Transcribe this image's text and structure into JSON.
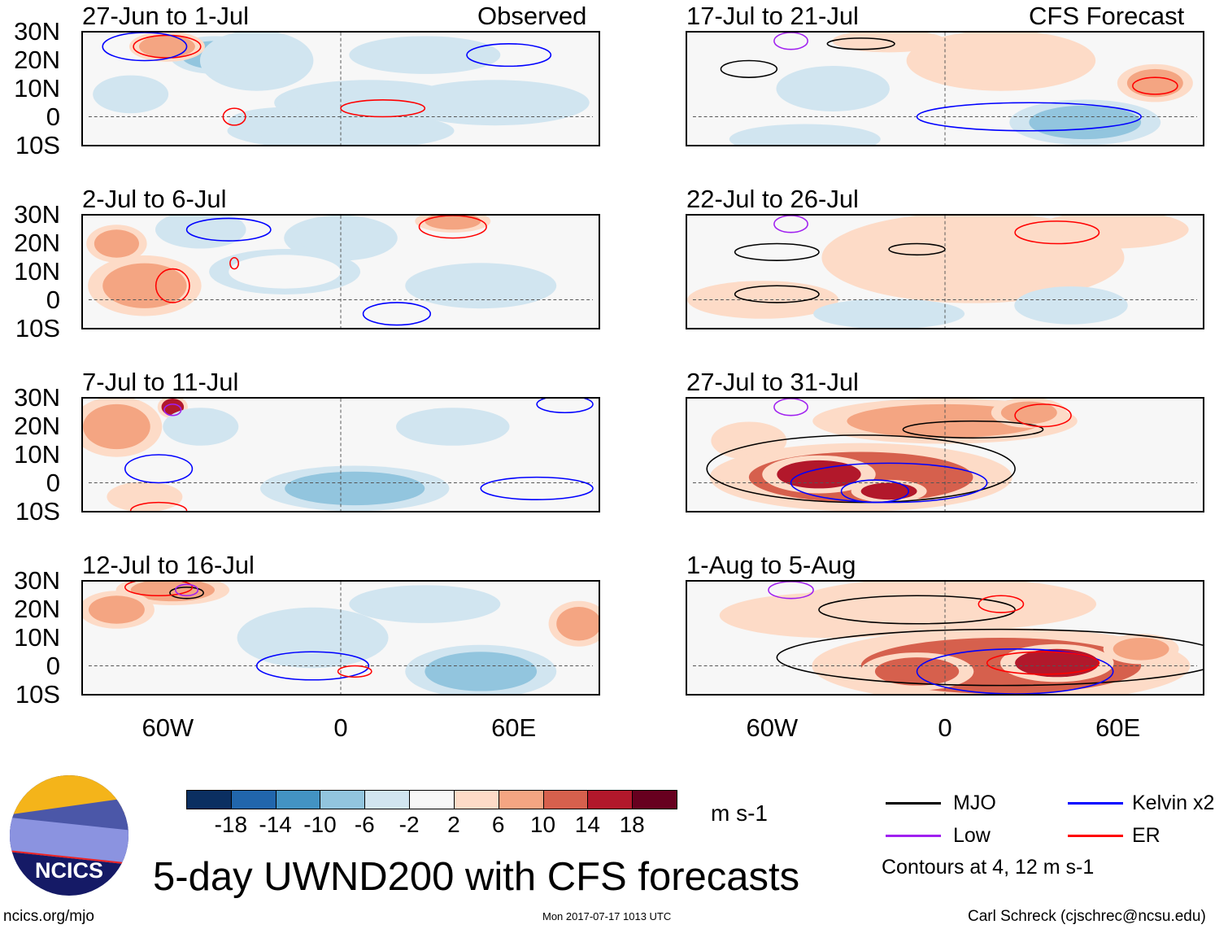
{
  "title": "5-day UWND200 with CFS forecasts",
  "logo_text": "NCICS",
  "footer": {
    "url": "ncics.org/mjo",
    "timestamp": "Mon 2017-07-17 1013 UTC",
    "author": "Carl Schreck (cjschrec@ncsu.edu)"
  },
  "labels": {
    "observed": "Observed",
    "forecast": "CFS Forecast"
  },
  "lat_labels": [
    "30N",
    "20N",
    "10N",
    "0",
    "10S"
  ],
  "lon_labels": [
    "60W",
    "0",
    "60E"
  ],
  "colorbar": {
    "units": "m s-1",
    "ticks": [
      "-18",
      "-14",
      "-10",
      "-6",
      "-2",
      "2",
      "6",
      "10",
      "14",
      "18"
    ],
    "colors": [
      "#0b2f61",
      "#2166ac",
      "#4393c3",
      "#92c5de",
      "#d1e5f0",
      "#f7f7f7",
      "#fddbc7",
      "#f4a582",
      "#d6604d",
      "#b2182b",
      "#67001f"
    ]
  },
  "legend": {
    "items": [
      {
        "label": "MJO",
        "color": "#000000"
      },
      {
        "label": "Kelvin x2",
        "color": "#0000ff"
      },
      {
        "label": "Low",
        "color": "#a020f0"
      },
      {
        "label": "ER",
        "color": "#ff0000"
      }
    ],
    "note": "Contours at 4, 12 m s-1"
  },
  "chart_data": {
    "type": "map",
    "variable": "200-hPa zonal wind anomaly",
    "lon_range": [
      -90,
      90
    ],
    "lat_range": [
      -10,
      30
    ],
    "panels": [
      {
        "title": "27-Jun to 1-Jul",
        "group": "observed",
        "features": [
          [
            -45,
            22,
            12,
            5,
            -8
          ],
          [
            -30,
            20,
            15,
            8,
            -4
          ],
          [
            -62,
            25,
            10,
            4,
            9
          ],
          [
            10,
            5,
            25,
            6,
            -4
          ],
          [
            55,
            5,
            25,
            6,
            -6
          ],
          [
            0,
            -5,
            30,
            5,
            -5
          ],
          [
            -20,
            -2,
            15,
            4,
            -3
          ],
          [
            -75,
            8,
            10,
            5,
            -3
          ],
          [
            30,
            22,
            20,
            5,
            -3
          ]
        ],
        "contours": [
          [
            "er",
            -62,
            25,
            12,
            4
          ],
          [
            "er",
            15,
            3,
            15,
            3
          ],
          [
            "kelvin",
            -70,
            25,
            15,
            5
          ],
          [
            "kelvin",
            60,
            22,
            15,
            4
          ],
          [
            "er",
            -38,
            0,
            4,
            3
          ]
        ]
      },
      {
        "title": "2-Jul to 6-Jul",
        "group": "observed",
        "features": [
          [
            -70,
            5,
            15,
            8,
            6
          ],
          [
            -80,
            20,
            8,
            5,
            6
          ],
          [
            -50,
            25,
            12,
            5,
            -4
          ],
          [
            50,
            5,
            20,
            6,
            -6
          ],
          [
            0,
            22,
            15,
            6,
            -3
          ],
          [
            40,
            28,
            10,
            3,
            6
          ],
          [
            -20,
            10,
            20,
            6,
            -2
          ]
        ],
        "contours": [
          [
            "er",
            -60,
            5,
            6,
            6
          ],
          [
            "er",
            40,
            26,
            12,
            4
          ],
          [
            "kelvin",
            -40,
            25,
            15,
            4
          ],
          [
            "er",
            -38,
            13,
            1.5,
            2
          ],
          [
            "kelvin",
            20,
            -5,
            12,
            4
          ]
        ]
      },
      {
        "title": "7-Jul to 11-Jul",
        "group": "observed",
        "features": [
          [
            -60,
            27,
            4,
            3,
            14
          ],
          [
            -80,
            20,
            12,
            8,
            6
          ],
          [
            5,
            -2,
            25,
            6,
            -7
          ],
          [
            -50,
            20,
            10,
            5,
            -3
          ],
          [
            40,
            20,
            15,
            5,
            -3
          ],
          [
            -70,
            -5,
            10,
            4,
            5
          ]
        ],
        "contours": [
          [
            "low",
            -60,
            26,
            3,
            2
          ],
          [
            "kelvin",
            -65,
            5,
            12,
            5
          ],
          [
            "kelvin",
            70,
            -2,
            20,
            4
          ],
          [
            "er",
            -65,
            -10,
            10,
            3
          ],
          [
            "kelvin",
            80,
            28,
            10,
            3
          ]
        ]
      },
      {
        "title": "12-Jul to 16-Jul",
        "group": "observed",
        "features": [
          [
            -60,
            27,
            15,
            4,
            8
          ],
          [
            50,
            -2,
            20,
            7,
            -10
          ],
          [
            -10,
            10,
            20,
            8,
            -3
          ],
          [
            -80,
            20,
            10,
            5,
            6
          ],
          [
            30,
            22,
            20,
            5,
            -3
          ],
          [
            85,
            15,
            8,
            6,
            6
          ]
        ],
        "contours": [
          [
            "mjo",
            -55,
            26,
            6,
            2
          ],
          [
            "kelvin",
            -10,
            0,
            20,
            5
          ],
          [
            "er",
            5,
            -2,
            6,
            2
          ],
          [
            "er",
            -65,
            28,
            12,
            3
          ],
          [
            "low",
            -55,
            27,
            4,
            2
          ]
        ]
      },
      {
        "title": "17-Jul to 21-Jul",
        "group": "forecast",
        "features": [
          [
            20,
            20,
            25,
            8,
            4
          ],
          [
            50,
            -2,
            20,
            6,
            -8
          ],
          [
            -50,
            -8,
            20,
            4,
            -6
          ],
          [
            -40,
            10,
            15,
            6,
            -3
          ],
          [
            75,
            12,
            10,
            5,
            6
          ],
          [
            -20,
            27,
            15,
            3,
            4
          ]
        ],
        "contours": [
          [
            "mjo",
            -70,
            17,
            10,
            3
          ],
          [
            "mjo",
            -30,
            26,
            12,
            2
          ],
          [
            "low",
            -55,
            27,
            6,
            3
          ],
          [
            "er",
            75,
            11,
            8,
            3
          ],
          [
            "kelvin",
            30,
            0,
            40,
            5
          ]
        ]
      },
      {
        "title": "22-Jul to 26-Jul",
        "group": "forecast",
        "features": [
          [
            10,
            15,
            40,
            12,
            4
          ],
          [
            -65,
            0,
            20,
            5,
            5
          ],
          [
            45,
            -2,
            15,
            5,
            -6
          ],
          [
            -20,
            -5,
            20,
            4,
            -3
          ],
          [
            60,
            25,
            20,
            5,
            4
          ]
        ],
        "contours": [
          [
            "mjo",
            -60,
            17,
            15,
            3
          ],
          [
            "mjo",
            -60,
            2,
            15,
            3
          ],
          [
            "mjo",
            -10,
            18,
            10,
            2
          ],
          [
            "er",
            40,
            24,
            15,
            4
          ],
          [
            "low",
            -55,
            27,
            6,
            3
          ]
        ]
      },
      {
        "title": "27-Jul to 31-Jul",
        "group": "forecast",
        "features": [
          [
            -30,
            2,
            40,
            9,
            10
          ],
          [
            -45,
            3,
            15,
            5,
            14
          ],
          [
            -20,
            -3,
            10,
            3,
            16
          ],
          [
            0,
            22,
            35,
            6,
            6
          ],
          [
            30,
            25,
            10,
            4,
            8
          ],
          [
            -70,
            15,
            10,
            5,
            5
          ]
        ],
        "contours": [
          [
            "mjo",
            -30,
            5,
            55,
            12
          ],
          [
            "mjo",
            10,
            19,
            25,
            3
          ],
          [
            "kelvin",
            -20,
            0,
            35,
            7
          ],
          [
            "kelvin",
            -25,
            -3,
            12,
            4
          ],
          [
            "er",
            35,
            24,
            10,
            4
          ],
          [
            "low",
            -55,
            27,
            6,
            3
          ]
        ]
      },
      {
        "title": "1-Aug to 5-Aug",
        "group": "forecast",
        "features": [
          [
            20,
            0,
            50,
            10,
            10
          ],
          [
            40,
            1,
            15,
            5,
            15
          ],
          [
            -10,
            -2,
            15,
            5,
            12
          ],
          [
            0,
            22,
            40,
            7,
            5
          ],
          [
            70,
            6,
            10,
            4,
            8
          ],
          [
            -40,
            18,
            30,
            6,
            4
          ]
        ],
        "contours": [
          [
            "mjo",
            20,
            3,
            80,
            10
          ],
          [
            "mjo",
            -10,
            20,
            35,
            5
          ],
          [
            "kelvin",
            25,
            -2,
            35,
            8
          ],
          [
            "er",
            35,
            1,
            20,
            4
          ],
          [
            "low",
            -55,
            27,
            8,
            3
          ],
          [
            "er",
            20,
            22,
            8,
            3
          ]
        ]
      }
    ]
  }
}
